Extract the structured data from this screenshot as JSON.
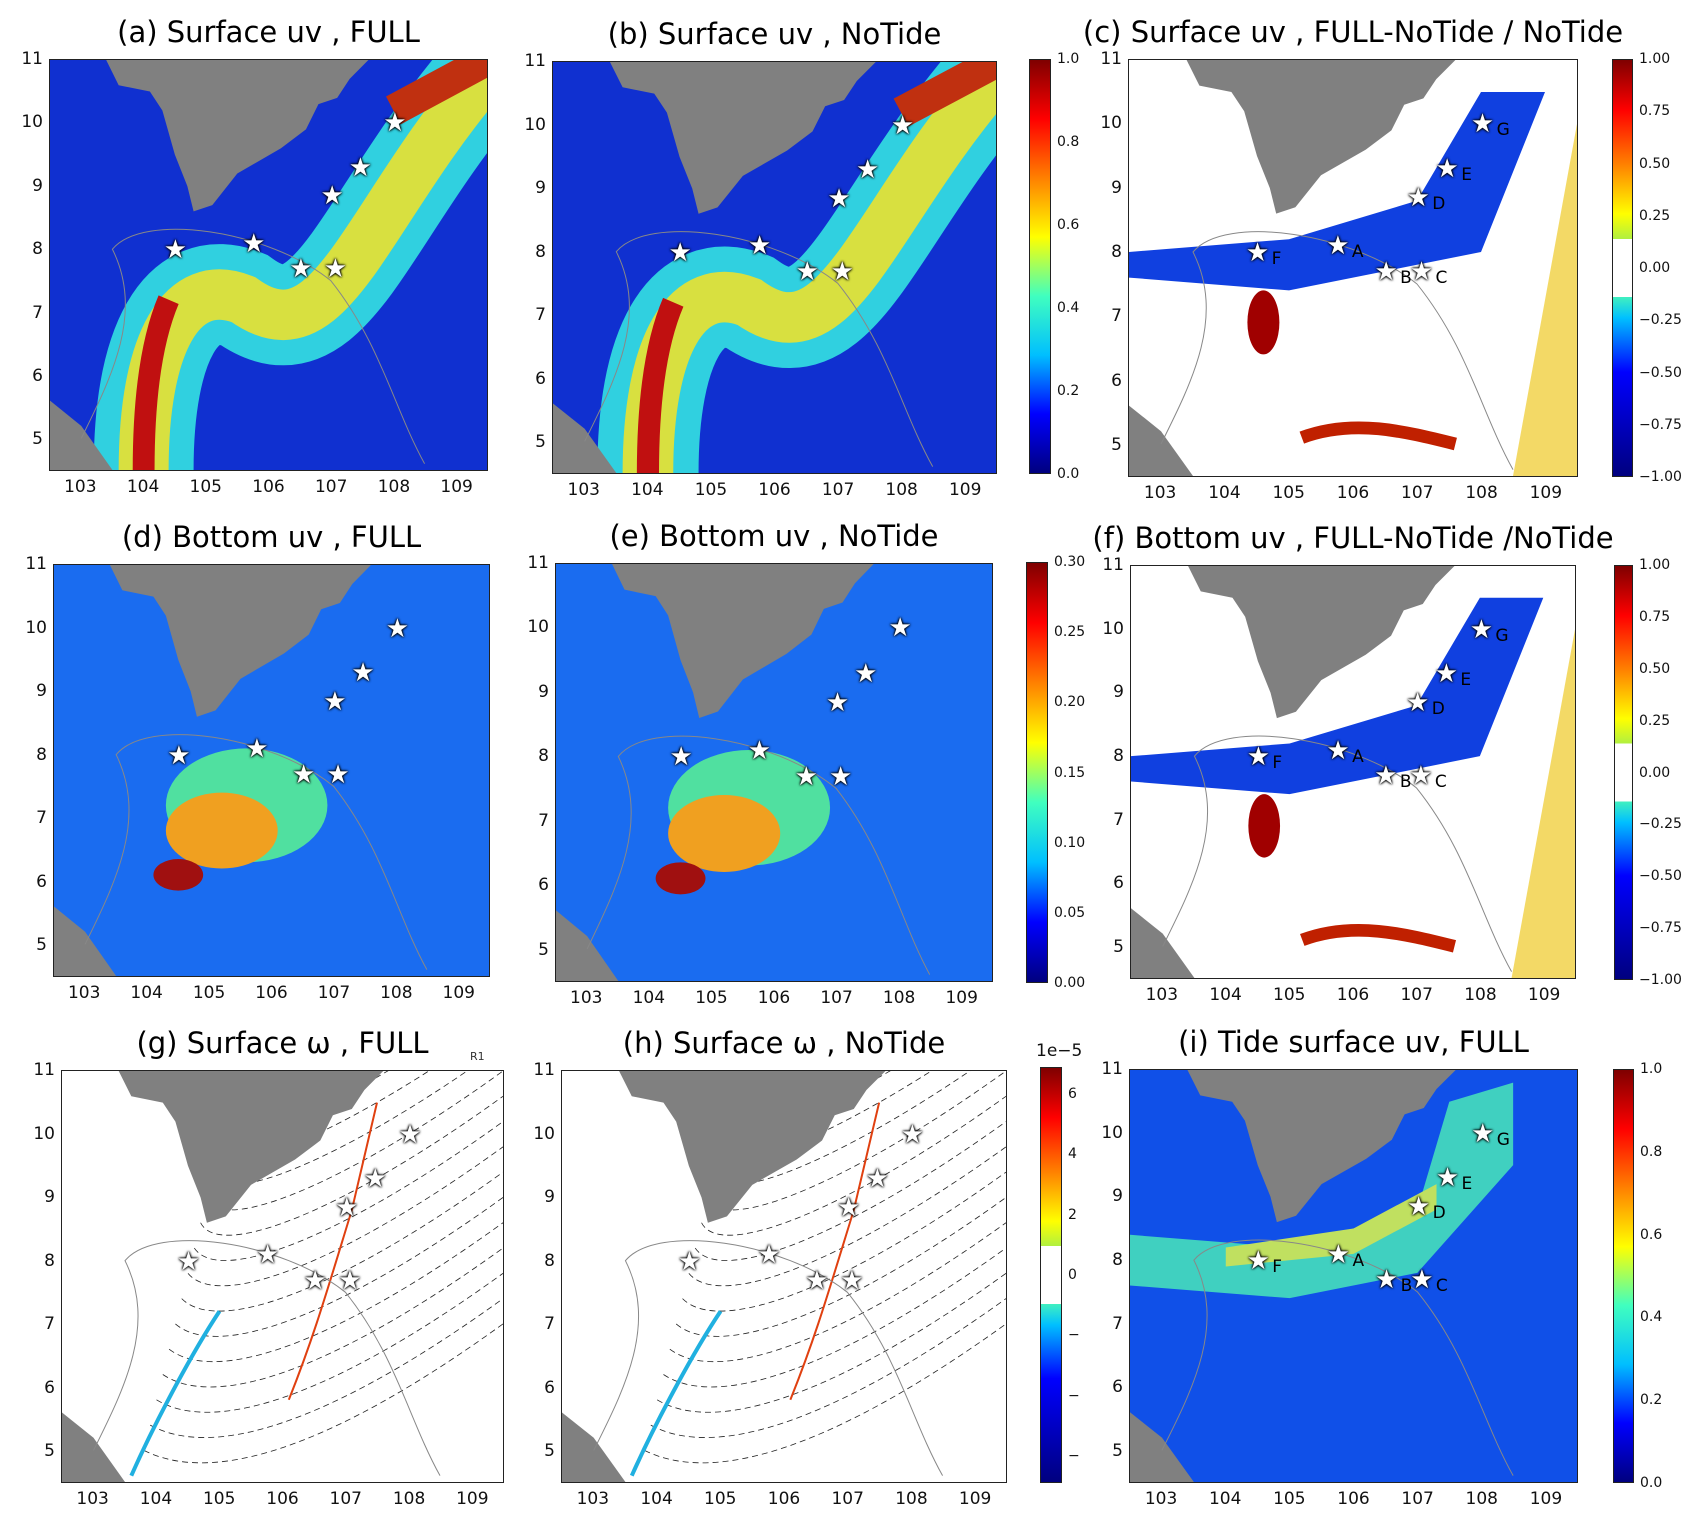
{
  "panels": [
    {
      "id": "a",
      "title": "(a) Surface uv , FULL",
      "style": "speed",
      "labels": false
    },
    {
      "id": "b",
      "title": "(b) Surface uv , NoTide",
      "style": "speed",
      "labels": false
    },
    {
      "id": "c",
      "title": "(c) Surface uv , FULL-NoTide / NoTide",
      "style": "ratio",
      "labels": true
    },
    {
      "id": "d",
      "title": "(d) Bottom uv , FULL",
      "style": "bottom",
      "labels": false
    },
    {
      "id": "e",
      "title": "(e) Bottom uv , NoTide",
      "style": "bottom",
      "labels": false
    },
    {
      "id": "f",
      "title": "(f) Bottom uv , FULL-NoTide /NoTide",
      "style": "ratio",
      "labels": true
    },
    {
      "id": "g",
      "title": "(g) Surface ω , FULL",
      "style": "vort",
      "labels": false
    },
    {
      "id": "h",
      "title": "(h) Surface ω , NoTide",
      "style": "vort",
      "labels": false
    },
    {
      "id": "i",
      "title": "(i) Tide surface uv, FULL",
      "style": "tide",
      "labels": true
    }
  ],
  "annotation_r1": "R1",
  "lon_ticks": [
    "103",
    "104",
    "105",
    "106",
    "107",
    "108",
    "109"
  ],
  "lat_ticks": [
    "5",
    "6",
    "7",
    "8",
    "9",
    "10",
    "11"
  ],
  "lon_range": [
    102.5,
    109.5
  ],
  "lat_range": [
    4.5,
    11
  ],
  "stations": [
    {
      "label": "F",
      "lon": 104.5,
      "lat": 8.0
    },
    {
      "label": "A",
      "lon": 105.75,
      "lat": 8.1
    },
    {
      "label": "B",
      "lon": 106.5,
      "lat": 7.7
    },
    {
      "label": "C",
      "lon": 107.05,
      "lat": 7.7
    },
    {
      "label": "D",
      "lon": 107.0,
      "lat": 8.85
    },
    {
      "label": "E",
      "lon": 107.45,
      "lat": 9.3
    },
    {
      "label": "G",
      "lon": 108.0,
      "lat": 10.0
    }
  ],
  "colorbars": [
    {
      "id": "speed-surface",
      "type": "jet",
      "exponent": "",
      "ticks": [
        "1.0",
        "0.8",
        "0.6",
        "0.4",
        "0.2",
        "0.0"
      ]
    },
    {
      "id": "ratio-surface",
      "type": "div",
      "exponent": "",
      "ticks": [
        "1.00",
        "0.75",
        "0.50",
        "0.25",
        "0.00",
        "−0.25",
        "−0.50",
        "−0.75",
        "−1.00"
      ]
    },
    {
      "id": "speed-bottom",
      "type": "jet",
      "exponent": "",
      "ticks": [
        "0.30",
        "0.25",
        "0.20",
        "0.15",
        "0.10",
        "0.05",
        "0.00"
      ]
    },
    {
      "id": "ratio-bottom",
      "type": "div",
      "exponent": "",
      "ticks": [
        "1.00",
        "0.75",
        "0.50",
        "0.25",
        "0.00",
        "−0.25",
        "−0.50",
        "−0.75",
        "−1.00"
      ]
    },
    {
      "id": "vorticity",
      "type": "div",
      "exponent": "1e−5",
      "ticks": [
        "6",
        "4",
        "2",
        "0",
        "−",
        "−",
        "−"
      ]
    },
    {
      "id": "tide-speed",
      "type": "jet",
      "exponent": "",
      "ticks": [
        "1.0",
        "0.8",
        "0.6",
        "0.4",
        "0.2",
        "0.0"
      ]
    }
  ],
  "colors": {
    "land": "#808080",
    "jet": [
      "#00007f",
      "#0000ff",
      "#00bfff",
      "#40ffbf",
      "#ffff00",
      "#ff8000",
      "#ff0000",
      "#7f0000"
    ]
  }
}
